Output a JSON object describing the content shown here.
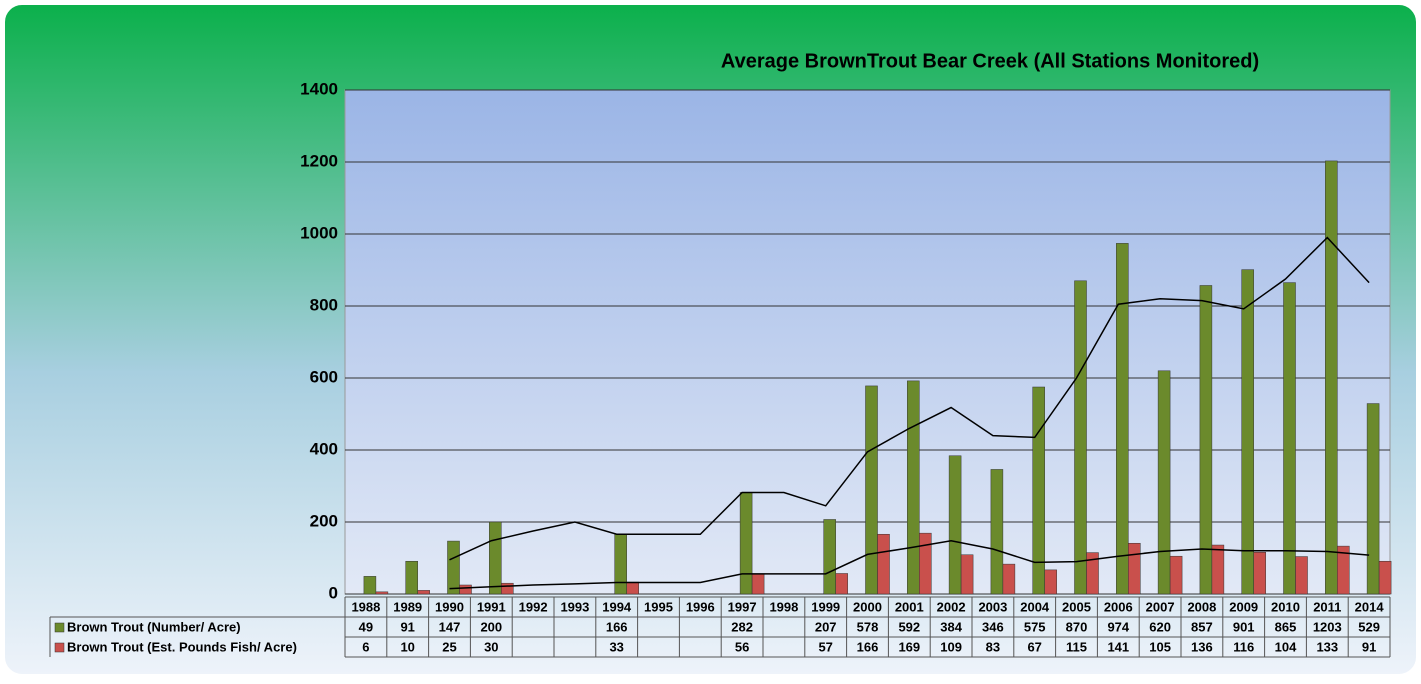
{
  "chart_data": {
    "type": "bar",
    "title": "Average BrownTrout Bear Creek (All Stations Monitored)",
    "categories": [
      "1988",
      "1989",
      "1990",
      "1991",
      "1992",
      "1993",
      "1994",
      "1995",
      "1996",
      "1997",
      "1998",
      "1999",
      "2000",
      "2001",
      "2002",
      "2003",
      "2004",
      "2005",
      "2006",
      "2007",
      "2008",
      "2009",
      "2010",
      "2011",
      "2014"
    ],
    "series": [
      {
        "name": "Brown Trout (Number/ Acre)",
        "color": "#6b8a2c",
        "values": [
          49,
          91,
          147,
          200,
          null,
          null,
          166,
          null,
          null,
          282,
          null,
          207,
          578,
          592,
          384,
          346,
          575,
          870,
          974,
          620,
          857,
          901,
          865,
          1203,
          529
        ]
      },
      {
        "name": "Brown Trout (Est. Pounds Fish/ Acre)",
        "color": "#c9504c",
        "values": [
          6,
          10,
          25,
          30,
          null,
          null,
          33,
          null,
          null,
          56,
          null,
          57,
          166,
          169,
          109,
          83,
          67,
          115,
          141,
          105,
          136,
          116,
          104,
          133,
          91
        ]
      }
    ],
    "trendlines": [
      {
        "color": "#000000",
        "values": [
          null,
          null,
          95,
          148,
          175,
          200,
          166,
          166,
          166,
          282,
          282,
          245,
          395,
          460,
          518,
          440,
          435,
          600,
          805,
          820,
          815,
          792,
          875,
          990,
          865
        ]
      },
      {
        "color": "#000000",
        "values": [
          null,
          null,
          15,
          20,
          25,
          28,
          32,
          32,
          32,
          56,
          56,
          56,
          110,
          128,
          148,
          125,
          88,
          90,
          105,
          118,
          125,
          120,
          120,
          118,
          108
        ]
      }
    ],
    "ylim": [
      0,
      1400
    ],
    "yticks": [
      0,
      200,
      400,
      600,
      800,
      1000,
      1200,
      1400
    ],
    "grid": true
  }
}
